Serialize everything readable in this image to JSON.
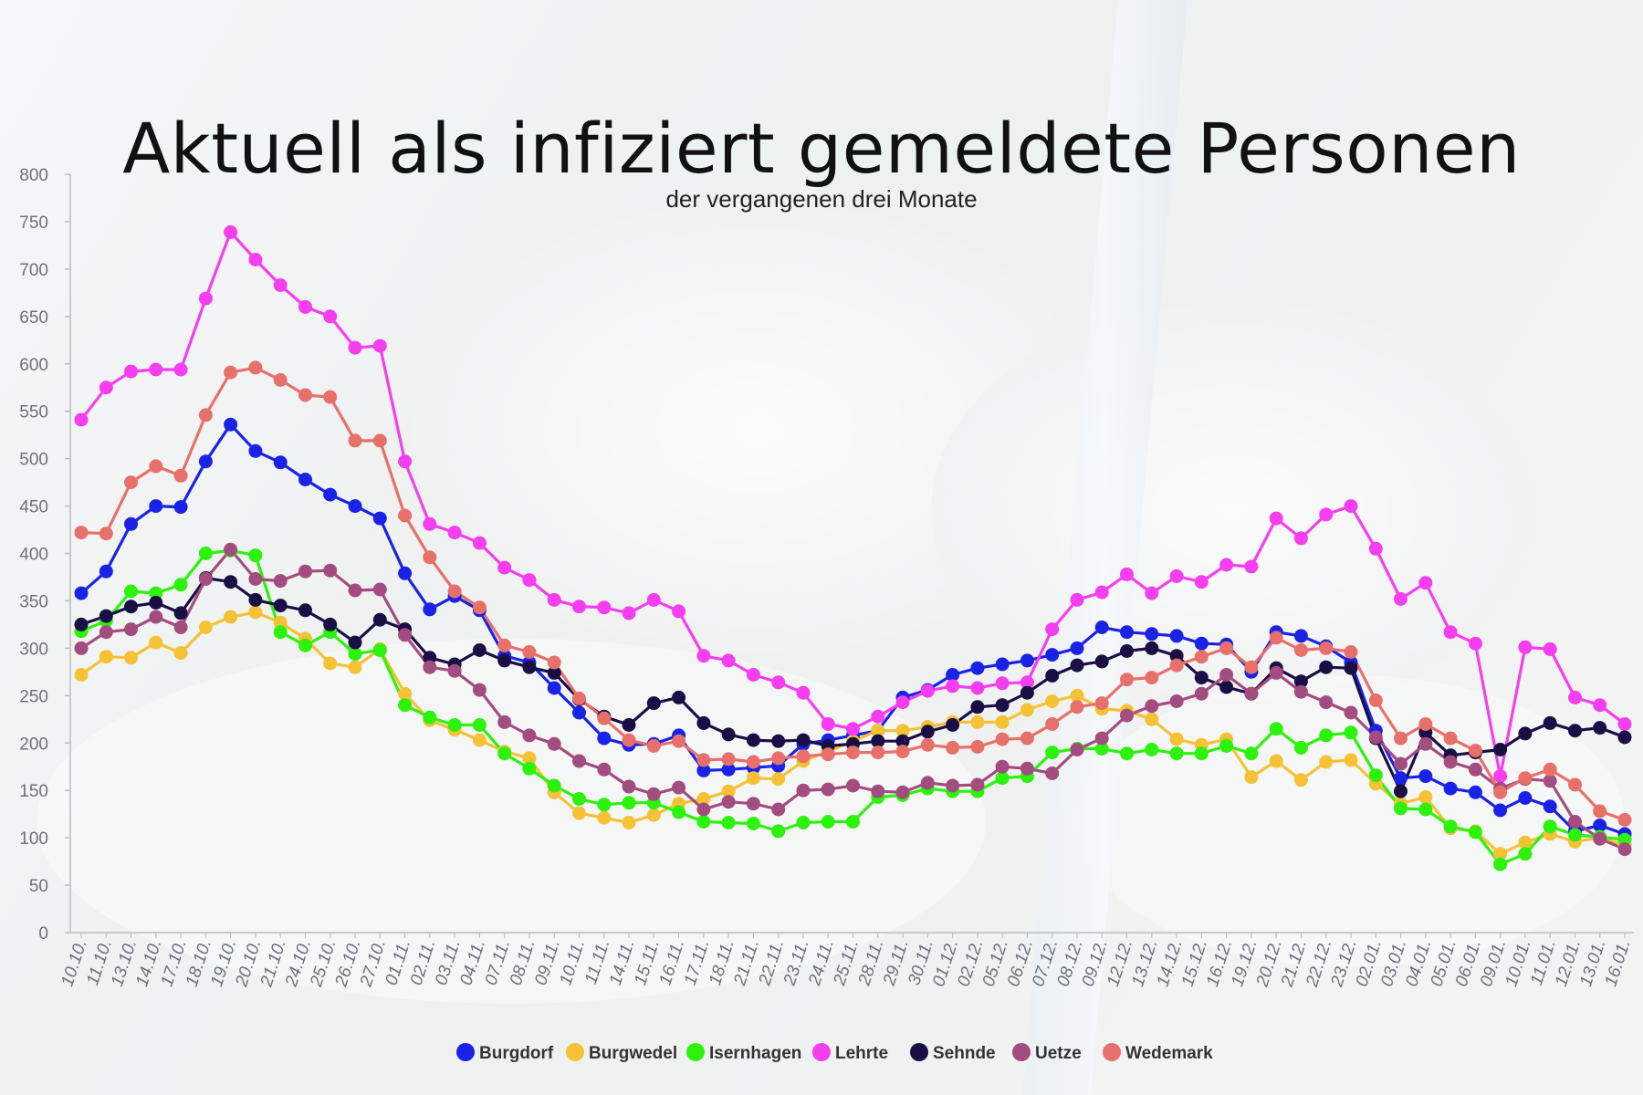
{
  "chart_data": {
    "type": "line",
    "title": "Aktuell als infiziert gemeldete Personen",
    "subtitle": "der vergangenen drei Monate",
    "ylim": [
      0,
      800
    ],
    "yticks": [
      0,
      50,
      100,
      150,
      200,
      250,
      300,
      350,
      400,
      450,
      500,
      550,
      600,
      650,
      700,
      750,
      800
    ],
    "grid": false,
    "legend_position": "bottom",
    "categories": [
      "10.10.",
      "11.10.",
      "13.10.",
      "14.10.",
      "17.10.",
      "18.10.",
      "19.10.",
      "20.10.",
      "21.10.",
      "24.10.",
      "25.10.",
      "26.10.",
      "27.10.",
      "01.11.",
      "02.11.",
      "03.11.",
      "04.11.",
      "07.11.",
      "08.11.",
      "09.11.",
      "10.11.",
      "11.11.",
      "14.11.",
      "15.11.",
      "16.11.",
      "17.11.",
      "18.11.",
      "21.11.",
      "22.11.",
      "23.11.",
      "24.11.",
      "25.11.",
      "28.11.",
      "29.11.",
      "30.11.",
      "01.12.",
      "02.12.",
      "05.12.",
      "06.12.",
      "07.12.",
      "08.12.",
      "09.12.",
      "12.12.",
      "13.12.",
      "14.12.",
      "15.12.",
      "16.12.",
      "19.12.",
      "20.12.",
      "21.12.",
      "22.12.",
      "23.12.",
      "02.01.",
      "03.01.",
      "04.01.",
      "05.01.",
      "06.01.",
      "09.01.",
      "10.01.",
      "11.01.",
      "12.01.",
      "13.01.",
      "16.01."
    ],
    "tick_labels": [
      "10.10.",
      "11.10.",
      "13.10.",
      "14.10.",
      "17.10.",
      "18.10.",
      "19.10.",
      "20.10.",
      "21.10.",
      "24.10.",
      "25.10.",
      "26.10.",
      "27.10.",
      "01.11.",
      "02.11.",
      "03.11.",
      "04.11.",
      "07.11.",
      "08.11.",
      "09.11.",
      "10.11.",
      "11.11.",
      "14.11.",
      "15.11.",
      "16.11.",
      "17.11.",
      "18.11.",
      "21.11.",
      "22.11.",
      "23.11.",
      "24.11.",
      "25.11.",
      "28.11.",
      "29.11.",
      "30.11.",
      "01.12.",
      "02.12.",
      "05.12.",
      "06.12.",
      "07.12.",
      "08.12.",
      "09.12.",
      "12.12.",
      "13.12.",
      "14.12.",
      "15.12.",
      "16.12.",
      "19.12.",
      "20.12.",
      "21.12.",
      "22.12.",
      "23.12.",
      "02.01.",
      "03.01.",
      "04.01.",
      "05.01.",
      "06.01.",
      "09.01.",
      "10.01.",
      "11.01.",
      "12.01.",
      "13.01.",
      "16.01."
    ],
    "series": [
      {
        "name": "Burgdorf",
        "color": "#1a22e6",
        "values": [
          358,
          381,
          431,
          450,
          449,
          497,
          536,
          508,
          496,
          478,
          462,
          450,
          437,
          379,
          341,
          355,
          340,
          292,
          285,
          258,
          232,
          205,
          198,
          199,
          208,
          171,
          172,
          174,
          176,
          199,
          203,
          208,
          213,
          248,
          256,
          272,
          279,
          283,
          287,
          293,
          300,
          322,
          317,
          315,
          313,
          305,
          304,
          275,
          317,
          313,
          302,
          285,
          213,
          163,
          165,
          152,
          148,
          129,
          142,
          133,
          107,
          113,
          104
        ]
      },
      {
        "name": "Burgwedel",
        "color": "#f5c236",
        "values": [
          272,
          291,
          290,
          306,
          295,
          322,
          333,
          338,
          327,
          310,
          284,
          280,
          299,
          252,
          224,
          214,
          203,
          191,
          184,
          148,
          126,
          121,
          116,
          124,
          136,
          141,
          149,
          163,
          162,
          181,
          191,
          202,
          213,
          213,
          217,
          222,
          222,
          222,
          235,
          244,
          250,
          236,
          234,
          225,
          204,
          198,
          204,
          164,
          181,
          161,
          180,
          182,
          157,
          136,
          143,
          110,
          107,
          83,
          95,
          104,
          96,
          100,
          92
        ]
      },
      {
        "name": "Isernhagen",
        "color": "#2cf20c",
        "values": [
          318,
          329,
          360,
          358,
          367,
          400,
          403,
          398,
          317,
          303,
          317,
          294,
          298,
          240,
          227,
          219,
          219,
          189,
          173,
          155,
          141,
          135,
          137,
          137,
          127,
          117,
          116,
          115,
          107,
          116,
          117,
          117,
          143,
          145,
          152,
          149,
          149,
          163,
          165,
          190,
          194,
          194,
          189,
          193,
          189,
          189,
          197,
          189,
          215,
          195,
          208,
          211,
          166,
          131,
          130,
          112,
          106,
          72,
          83,
          112,
          103,
          101,
          98
        ]
      },
      {
        "name": "Lehrte",
        "color": "#f53ef0",
        "values": [
          541,
          575,
          592,
          594,
          594,
          669,
          739,
          710,
          683,
          660,
          650,
          617,
          619,
          497,
          431,
          422,
          411,
          385,
          372,
          351,
          344,
          343,
          337,
          351,
          339,
          292,
          287,
          272,
          264,
          253,
          220,
          215,
          228,
          243,
          255,
          260,
          258,
          263,
          264,
          320,
          351,
          359,
          378,
          358,
          376,
          370,
          388,
          386,
          437,
          416,
          441,
          450,
          405,
          352,
          369,
          317,
          305,
          165,
          301,
          299,
          248,
          240,
          220
        ]
      },
      {
        "name": "Sehnde",
        "color": "#1a0f45",
        "values": [
          325,
          334,
          344,
          348,
          337,
          374,
          370,
          351,
          345,
          340,
          325,
          306,
          330,
          320,
          290,
          283,
          298,
          287,
          280,
          274,
          246,
          228,
          219,
          242,
          248,
          221,
          209,
          203,
          202,
          203,
          197,
          199,
          202,
          202,
          212,
          219,
          238,
          240,
          253,
          271,
          282,
          286,
          297,
          300,
          292,
          269,
          259,
          252,
          279,
          265,
          280,
          279,
          205,
          149,
          211,
          187,
          190,
          193,
          210,
          221,
          213,
          216,
          206
        ]
      },
      {
        "name": "Uetze",
        "color": "#a34c80",
        "values": [
          300,
          317,
          320,
          333,
          322,
          373,
          404,
          373,
          371,
          381,
          382,
          361,
          362,
          314,
          280,
          276,
          256,
          222,
          208,
          199,
          181,
          172,
          154,
          146,
          153,
          130,
          138,
          136,
          130,
          150,
          151,
          155,
          149,
          148,
          158,
          155,
          156,
          175,
          173,
          168,
          193,
          205,
          229,
          239,
          244,
          252,
          272,
          252,
          274,
          254,
          243,
          232,
          206,
          178,
          199,
          180,
          172,
          152,
          162,
          160,
          117,
          99,
          88
        ]
      },
      {
        "name": "Wedemark",
        "color": "#e8706b",
        "values": [
          422,
          421,
          475,
          492,
          482,
          546,
          591,
          596,
          583,
          567,
          565,
          519,
          519,
          440,
          396,
          360,
          343,
          303,
          296,
          285,
          247,
          226,
          203,
          197,
          202,
          182,
          183,
          180,
          184,
          186,
          188,
          190,
          190,
          191,
          198,
          195,
          196,
          204,
          205,
          220,
          238,
          242,
          267,
          269,
          282,
          291,
          300,
          280,
          311,
          298,
          300,
          296,
          245,
          205,
          220,
          205,
          192,
          148,
          163,
          172,
          156,
          128,
          119
        ]
      }
    ]
  }
}
